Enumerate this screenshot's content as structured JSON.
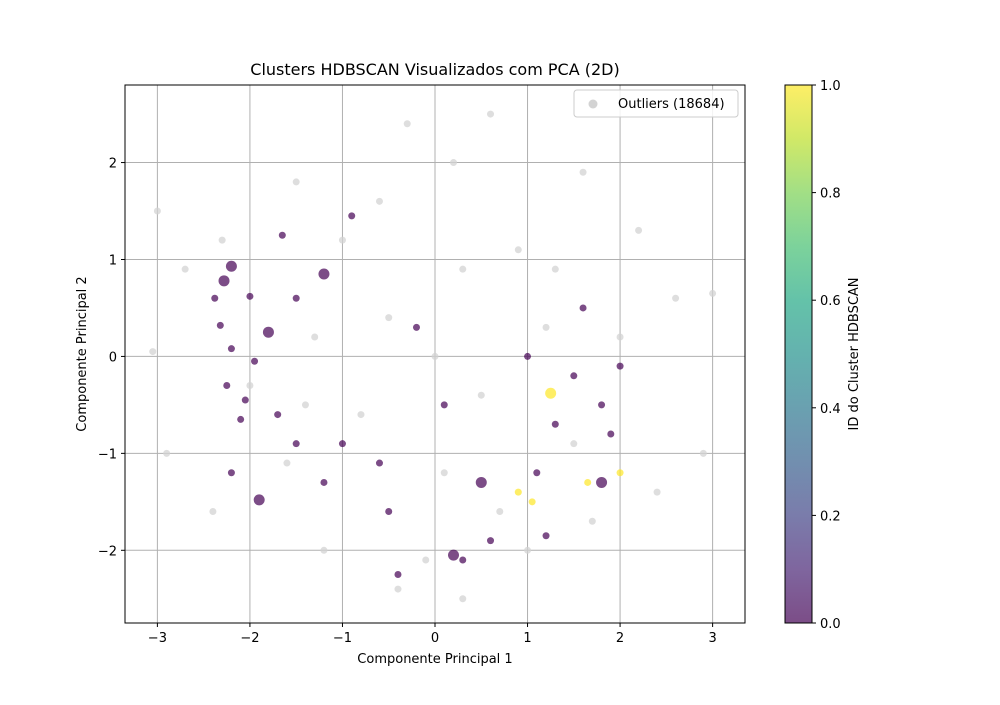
{
  "chart_data": {
    "type": "scatter",
    "title": "Clusters HDBSCAN Visualizados com PCA (2D)",
    "xlabel": "Componente Principal 1",
    "ylabel": "Componente Principal 2",
    "xlim": [
      -3.35,
      3.35
    ],
    "ylim": [
      -2.75,
      2.8
    ],
    "xticks": [
      -3,
      -2,
      -1,
      0,
      1,
      2,
      3
    ],
    "yticks": [
      -2,
      -1,
      0,
      1,
      2
    ],
    "xtick_labels": [
      "−3",
      "−2",
      "−1",
      "0",
      "1",
      "2",
      "3"
    ],
    "ytick_labels": [
      "−2",
      "−1",
      "0",
      "1",
      "2"
    ],
    "grid": true,
    "legend": {
      "placement": "top-right",
      "entries": [
        {
          "label": "Outliers (18684)",
          "color": "#d3d3d3"
        }
      ]
    },
    "colorbar": {
      "label": "ID do Cluster HDBSCAN",
      "range": [
        0.0,
        1.0
      ],
      "ticks": [
        0.0,
        0.2,
        0.4,
        0.6,
        0.8,
        1.0
      ],
      "tick_labels": [
        "0.0",
        "0.2",
        "0.4",
        "0.6",
        "0.8",
        "1.0"
      ],
      "colormap": "viridis"
    },
    "series": [
      {
        "name": "Outliers (18684)",
        "color": "#d3d3d3",
        "points": [
          [
            0.0,
            0.0
          ],
          [
            -0.5,
            0.4
          ],
          [
            0.5,
            -0.4
          ],
          [
            0.3,
            0.9
          ],
          [
            -0.8,
            -0.6
          ],
          [
            1.2,
            0.3
          ],
          [
            -1.3,
            0.2
          ],
          [
            0.1,
            -1.2
          ],
          [
            0.9,
            1.1
          ],
          [
            -1.0,
            1.2
          ],
          [
            1.5,
            -0.9
          ],
          [
            -1.6,
            -1.1
          ],
          [
            0.2,
            2.0
          ],
          [
            -0.1,
            -2.1
          ],
          [
            2.0,
            0.2
          ],
          [
            -2.0,
            -0.3
          ],
          [
            -0.3,
            2.4
          ],
          [
            -0.4,
            -2.4
          ],
          [
            2.6,
            0.6
          ],
          [
            -2.7,
            0.9
          ],
          [
            3.0,
            0.65
          ],
          [
            -3.05,
            0.05
          ],
          [
            -3.0,
            1.5
          ],
          [
            2.4,
            -1.4
          ],
          [
            -2.4,
            -1.6
          ],
          [
            1.6,
            1.9
          ],
          [
            -1.5,
            1.8
          ],
          [
            0.6,
            2.5
          ],
          [
            0.3,
            -2.5
          ],
          [
            2.9,
            -1.0
          ],
          [
            -2.9,
            -1.0
          ],
          [
            1.0,
            -2.0
          ],
          [
            -1.2,
            -2.0
          ],
          [
            2.2,
            1.3
          ],
          [
            -2.3,
            1.2
          ],
          [
            1.7,
            -1.7
          ],
          [
            -0.6,
            1.6
          ],
          [
            0.7,
            -1.6
          ],
          [
            1.3,
            0.9
          ],
          [
            -1.4,
            -0.5
          ]
        ]
      },
      {
        "name": "",
        "color": "#440154",
        "cluster_id": 0,
        "points": [
          [
            -2.2,
            0.93
          ],
          [
            -2.38,
            0.6
          ],
          [
            -2.2,
            0.08
          ],
          [
            -2.0,
            0.62
          ],
          [
            -1.65,
            1.25
          ],
          [
            -1.8,
            0.25
          ],
          [
            -2.25,
            -0.3
          ],
          [
            -2.05,
            -0.45
          ],
          [
            -2.1,
            -0.65
          ],
          [
            -2.2,
            -1.2
          ],
          [
            -1.9,
            -1.48
          ],
          [
            -1.2,
            -1.3
          ],
          [
            -1.5,
            -0.9
          ],
          [
            -1.0,
            -0.9
          ],
          [
            -0.4,
            -2.25
          ],
          [
            0.2,
            -2.05
          ],
          [
            0.3,
            -2.1
          ],
          [
            -0.5,
            -1.6
          ],
          [
            0.6,
            -1.9
          ],
          [
            1.2,
            -1.85
          ],
          [
            1.8,
            -1.3
          ],
          [
            2.0,
            -0.1
          ],
          [
            1.8,
            -0.5
          ],
          [
            1.5,
            -0.2
          ],
          [
            1.3,
            -0.7
          ],
          [
            0.5,
            -1.3
          ],
          [
            -0.6,
            -1.1
          ],
          [
            1.6,
            0.5
          ],
          [
            1.0,
            0.0
          ],
          [
            -1.5,
            0.6
          ],
          [
            -1.2,
            0.85
          ],
          [
            -0.9,
            1.45
          ],
          [
            0.1,
            -0.5
          ],
          [
            -0.2,
            0.3
          ],
          [
            -2.32,
            0.32
          ],
          [
            -2.28,
            0.78
          ],
          [
            -1.95,
            -0.05
          ],
          [
            -1.7,
            -0.6
          ],
          [
            1.1,
            -1.2
          ],
          [
            1.9,
            -0.8
          ]
        ]
      },
      {
        "name": "",
        "color": "#fde725",
        "cluster_id": 1,
        "points": [
          [
            1.25,
            -0.38
          ],
          [
            1.05,
            -1.5
          ],
          [
            2.0,
            -1.2
          ],
          [
            1.65,
            -1.3
          ],
          [
            0.9,
            -1.4
          ]
        ]
      }
    ]
  }
}
